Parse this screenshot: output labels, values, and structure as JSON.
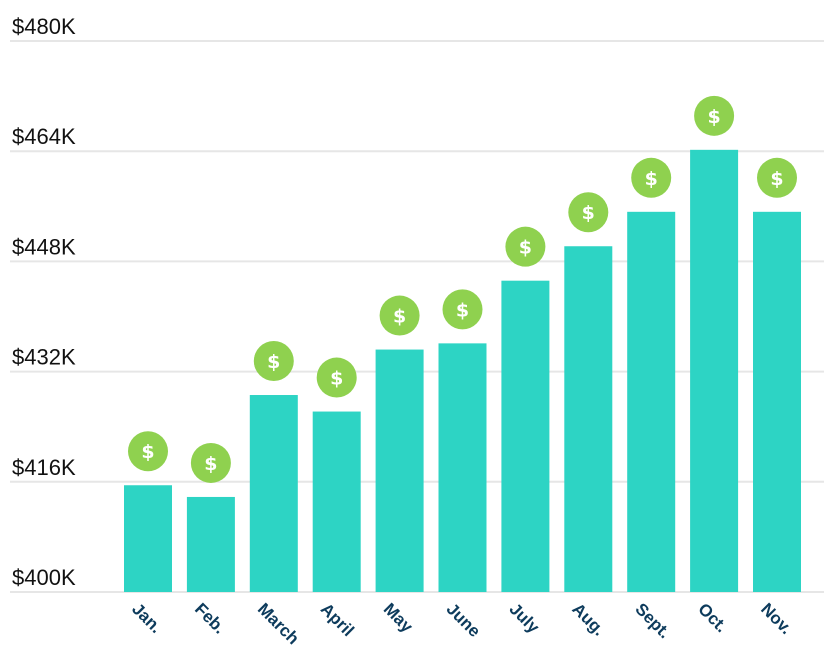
{
  "chart_data": {
    "type": "bar",
    "categories": [
      "Jan.",
      "Feb.",
      "March",
      "April",
      "May",
      "June",
      "July",
      "Aug.",
      "Sept.",
      "Oct.",
      "Nov."
    ],
    "values": [
      415.5,
      413.8,
      428.6,
      426.2,
      435.2,
      436.1,
      445.2,
      450.2,
      455.2,
      464.2,
      455.2
    ],
    "y_ticks": [
      400,
      416,
      432,
      448,
      464,
      480
    ],
    "y_tick_labels": [
      "$400K",
      "$416K",
      "$432K",
      "$448K",
      "$464K",
      "$480K"
    ],
    "ylim": [
      400,
      480
    ],
    "grid": true,
    "legend": "none",
    "colors": {
      "bar": "#2dd4c4",
      "coin": "#8fd14f",
      "grid": "#e6e6e6",
      "month_label": "#0d3b5c"
    },
    "marker_icon": "dollar-coin-icon",
    "marker_glyph": "$"
  }
}
